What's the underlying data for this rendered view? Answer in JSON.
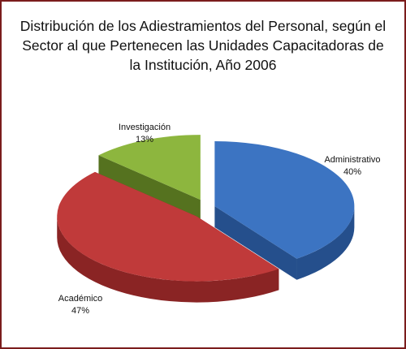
{
  "chart_data": {
    "type": "pie3d",
    "title": "Distribución de los Adiestramientos del Personal, según el Sector al que Pertenecen las Unidades Capacitadoras de la Institución, Año 2006",
    "categories": [
      "Administrativo",
      "Académico",
      "Investigación"
    ],
    "values": [
      40,
      47,
      13
    ],
    "value_labels": [
      "40%",
      "47%",
      "13%"
    ],
    "colors": [
      "#3c74c2",
      "#c03a3a",
      "#8db63e"
    ],
    "side_colors": [
      "#254f8c",
      "#8a2424",
      "#55721f"
    ]
  }
}
